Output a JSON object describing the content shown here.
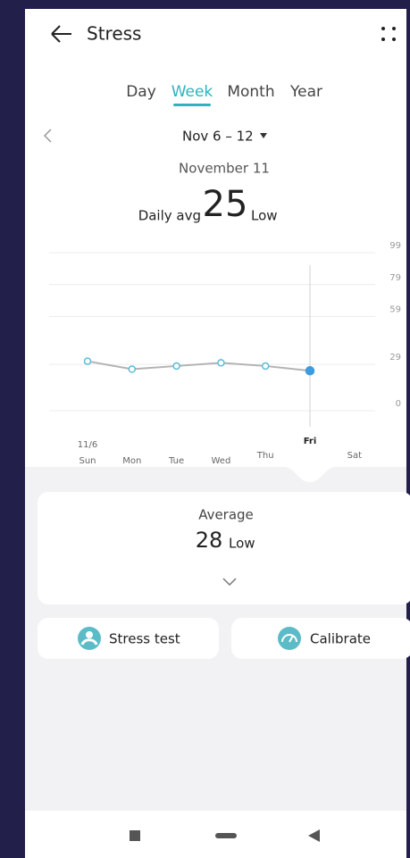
{
  "header": {
    "title": "Stress"
  },
  "tabs": {
    "items": [
      "Day",
      "Week",
      "Month",
      "Year"
    ],
    "active": 1
  },
  "range": {
    "label": "Nov 6 – 12"
  },
  "summary": {
    "date": "November 11",
    "label": "Daily avg",
    "value": 25,
    "level": "Low"
  },
  "chart_data": {
    "type": "line",
    "categories": [
      "Sun",
      "Mon",
      "Tue",
      "Wed",
      "Thu",
      "Fri",
      "Sat"
    ],
    "date_label": "11/6",
    "values": [
      31,
      26,
      28,
      30,
      28,
      25,
      null
    ],
    "line_color": "#b3b3b3",
    "point_color": "#5bbcd8",
    "selected_color": "#3d9be0",
    "selected": 5,
    "ylim": [
      0,
      99
    ],
    "yticks": [
      0,
      29,
      59,
      79,
      99
    ],
    "grid": true
  },
  "average": {
    "label": "Average",
    "value": 28,
    "level": "Low"
  },
  "actions": [
    {
      "label": "Stress test"
    },
    {
      "label": "Calibrate"
    }
  ]
}
